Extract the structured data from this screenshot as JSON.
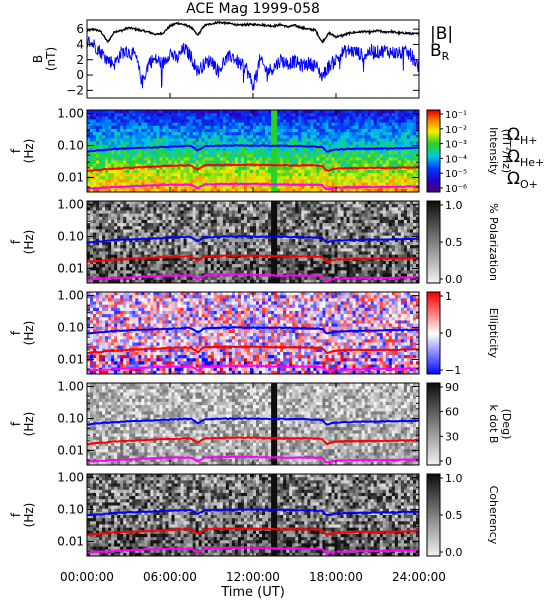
{
  "chart_data": [
    {
      "type": "line",
      "title": "ACE Mag 1999-058",
      "ylabel": "B\n(nT)",
      "ylim": [
        -3,
        7.2
      ],
      "yticks": [
        -2,
        0,
        2,
        4,
        6
      ],
      "xlim": [
        0,
        24
      ],
      "series": [
        {
          "name": "|B|",
          "color": "#000000",
          "x": [
            0,
            0.5,
            1,
            1.5,
            2,
            2.5,
            3,
            3.5,
            4,
            4.5,
            5,
            5.5,
            6,
            6.5,
            7,
            7.5,
            8,
            8.5,
            9,
            9.5,
            10,
            10.5,
            11,
            11.5,
            12,
            12.5,
            13,
            13.5,
            14,
            14.5,
            15,
            15.5,
            16,
            16.5,
            17,
            17.5,
            18,
            18.5,
            19,
            19.5,
            20,
            20.5,
            21,
            21.5,
            22,
            22.5,
            23,
            23.5,
            24
          ],
          "values": [
            5.8,
            6.0,
            5.7,
            4.3,
            5.7,
            5.8,
            6.2,
            6.0,
            5.8,
            5.6,
            5.3,
            5.5,
            6.4,
            6.8,
            6.6,
            6.3,
            5.2,
            6.5,
            6.7,
            6.9,
            6.8,
            6.7,
            6.5,
            6.6,
            6.6,
            6.6,
            6.5,
            6.4,
            6.6,
            6.3,
            6.5,
            6.2,
            6.0,
            5.9,
            4.3,
            5.5,
            5.0,
            5.2,
            5.5,
            5.6,
            5.7,
            5.6,
            5.8,
            5.6,
            5.7,
            5.5,
            5.5,
            5.4,
            5.4
          ]
        },
        {
          "name": "B",
          "sub": "R",
          "color": "#0000ff",
          "x": [
            0,
            0.5,
            1,
            1.5,
            2,
            2.5,
            3,
            3.5,
            4,
            4.5,
            5,
            5.5,
            6,
            6.5,
            7,
            7.5,
            8,
            8.5,
            9,
            9.5,
            10,
            10.5,
            11,
            11.5,
            12,
            12.5,
            13,
            13.5,
            14,
            14.5,
            15,
            15.5,
            16,
            16.5,
            17,
            17.5,
            18,
            18.5,
            19,
            19.5,
            20,
            20.5,
            21,
            21.5,
            22,
            22.5,
            23,
            23.5,
            24
          ],
          "values": [
            4.5,
            4.0,
            3.0,
            2.0,
            1.5,
            3.0,
            3.0,
            2.5,
            -1.0,
            1.8,
            2.0,
            1.5,
            3.0,
            2.0,
            3.5,
            2.5,
            0.5,
            1.5,
            2.0,
            0.5,
            2.0,
            2.5,
            1.5,
            1.0,
            -1.5,
            2.0,
            0.5,
            1.0,
            2.0,
            1.5,
            1.8,
            1.2,
            1.5,
            1.3,
            -0.2,
            1.2,
            2.0,
            3.0,
            3.2,
            3.0,
            2.5,
            3.2,
            3.0,
            3.2,
            3.0,
            2.8,
            3.0,
            2.5,
            1.0
          ]
        }
      ]
    },
    {
      "type": "heatmap",
      "name": "intensity",
      "ylabel": "f\n(Hz)",
      "colorbar_label": "Intensity\n(nT²/Hz)",
      "colorbar_ticks": [
        "10⁻¹",
        "10⁻²",
        "10⁻³",
        "10⁻⁴",
        "10⁻⁵",
        "10⁻⁶"
      ],
      "legend": [
        {
          "label": "Ω",
          "sub": "H+",
          "color": "#0000ff"
        },
        {
          "label": "Ω",
          "sub": "He+",
          "color": "#ff0000"
        },
        {
          "label": "Ω",
          "sub": "O+",
          "color": "#ff00ff"
        }
      ]
    },
    {
      "type": "heatmap",
      "name": "polarization",
      "ylabel": "f\n(Hz)",
      "colorbar_label": "% Polarization",
      "colorbar_ticks": [
        "1.0",
        "0.5",
        "0.0"
      ]
    },
    {
      "type": "heatmap",
      "name": "ellipticity",
      "ylabel": "f\n(Hz)",
      "colorbar_label": "Ellipticity",
      "colorbar_ticks": [
        "1",
        "0",
        "−1"
      ]
    },
    {
      "type": "heatmap",
      "name": "kdotb",
      "ylabel": "f\n(Hz)",
      "colorbar_label": "k dot B\n(Deg)",
      "colorbar_ticks": [
        "90",
        "60",
        "30",
        "0"
      ]
    },
    {
      "type": "heatmap",
      "name": "coherency",
      "ylabel": "f\n(Hz)",
      "colorbar_label": "Coherency",
      "colorbar_ticks": [
        "1.0",
        "0.5",
        "0.0"
      ]
    }
  ],
  "shared": {
    "freq_yticks": [
      "1.00",
      "0.10",
      "0.01"
    ],
    "xticks": [
      "00:00:00",
      "06:00:00",
      "12:00:00",
      "18:00:00",
      "24:00:00"
    ],
    "xlabel": "Time (UT)",
    "ion_lines": [
      {
        "name": "H+",
        "color": "#0000ff",
        "x": [
          0,
          2,
          4,
          6,
          7.5,
          8,
          8.5,
          10,
          12,
          14,
          16,
          17,
          17.3,
          18,
          20,
          22,
          24
        ],
        "f": [
          0.065,
          0.078,
          0.085,
          0.092,
          0.098,
          0.07,
          0.095,
          0.1,
          0.1,
          0.098,
          0.095,
          0.09,
          0.065,
          0.075,
          0.08,
          0.082,
          0.085
        ]
      },
      {
        "name": "He+",
        "color": "#ff0000",
        "x": [
          0,
          2,
          4,
          6,
          7.5,
          8,
          8.5,
          10,
          12,
          14,
          16,
          17,
          17.3,
          18,
          20,
          22,
          24
        ],
        "f": [
          0.016,
          0.019,
          0.021,
          0.023,
          0.024,
          0.017,
          0.024,
          0.025,
          0.025,
          0.024,
          0.024,
          0.023,
          0.016,
          0.019,
          0.02,
          0.02,
          0.021
        ]
      },
      {
        "name": "O+",
        "color": "#ff00ff",
        "x": [
          0,
          2,
          4,
          6,
          7.5,
          8,
          8.5,
          10,
          12,
          14,
          16,
          17,
          17.3,
          18,
          20,
          22,
          24
        ],
        "f": [
          0.0045,
          0.005,
          0.0055,
          0.006,
          0.006,
          0.0045,
          0.006,
          0.0063,
          0.0063,
          0.006,
          0.006,
          0.0058,
          0.0042,
          0.0048,
          0.005,
          0.005,
          0.0053
        ]
      }
    ]
  }
}
